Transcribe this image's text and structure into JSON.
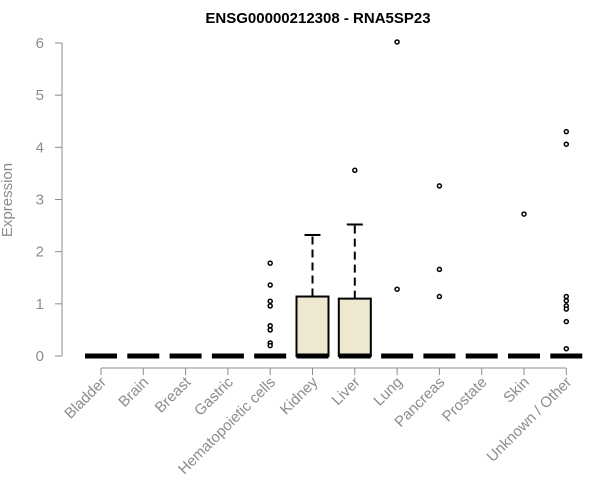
{
  "chart_data": {
    "type": "boxplot",
    "title": "ENSG00000212308 - RNA5SP23",
    "xlabel": "",
    "ylabel": "Expression",
    "ylim": [
      0,
      6
    ],
    "yticks": [
      0,
      1,
      2,
      3,
      4,
      5,
      6
    ],
    "box_fill": "#efe8d0",
    "categories": [
      "Bladder",
      "Brain",
      "Breast",
      "Gastric",
      "Hematopoietic cells",
      "Kidney",
      "Liver",
      "Lung",
      "Pancreas",
      "Prostate",
      "Skin",
      "Unknown / Other"
    ],
    "boxes": [
      {
        "q1": 0,
        "median": 0,
        "q3": 0,
        "whisker_low": 0,
        "whisker_high": 0,
        "outliers": []
      },
      {
        "q1": 0,
        "median": 0,
        "q3": 0,
        "whisker_low": 0,
        "whisker_high": 0,
        "outliers": []
      },
      {
        "q1": 0,
        "median": 0,
        "q3": 0,
        "whisker_low": 0,
        "whisker_high": 0,
        "outliers": []
      },
      {
        "q1": 0,
        "median": 0,
        "q3": 0,
        "whisker_low": 0,
        "whisker_high": 0,
        "outliers": []
      },
      {
        "q1": 0,
        "median": 0,
        "q3": 0,
        "whisker_low": 0,
        "whisker_high": 0,
        "outliers": [
          1.78,
          1.36,
          1.05,
          0.96,
          0.58,
          0.5,
          0.25,
          0.2
        ]
      },
      {
        "q1": 0,
        "median": 0,
        "q3": 1.14,
        "whisker_low": 0,
        "whisker_high": 2.32,
        "outliers": []
      },
      {
        "q1": 0,
        "median": 0,
        "q3": 1.1,
        "whisker_low": 0,
        "whisker_high": 2.52,
        "outliers": [
          3.56
        ]
      },
      {
        "q1": 0,
        "median": 0,
        "q3": 0,
        "whisker_low": 0,
        "whisker_high": 0,
        "outliers": [
          6.02,
          1.28
        ]
      },
      {
        "q1": 0,
        "median": 0,
        "q3": 0,
        "whisker_low": 0,
        "whisker_high": 0,
        "outliers": [
          3.26,
          1.66,
          1.14
        ]
      },
      {
        "q1": 0,
        "median": 0,
        "q3": 0,
        "whisker_low": 0,
        "whisker_high": 0,
        "outliers": []
      },
      {
        "q1": 0,
        "median": 0,
        "q3": 0,
        "whisker_low": 0,
        "whisker_high": 0,
        "outliers": [
          2.72
        ]
      },
      {
        "q1": 0,
        "median": 0,
        "q3": 0,
        "whisker_low": 0,
        "whisker_high": 0,
        "outliers": [
          4.3,
          4.06,
          1.14,
          1.06,
          0.96,
          0.9,
          0.66,
          0.14
        ]
      }
    ]
  }
}
